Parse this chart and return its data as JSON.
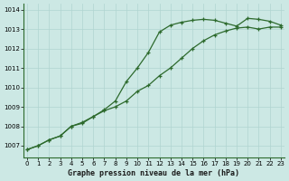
{
  "line1_x": [
    0,
    1,
    2,
    3,
    4,
    5,
    6,
    7,
    8,
    9,
    10,
    11,
    12,
    13,
    14,
    15,
    16,
    17,
    18,
    19,
    20,
    21,
    22,
    23
  ],
  "line1_y": [
    1006.8,
    1007.0,
    1007.3,
    1007.5,
    1008.0,
    1008.2,
    1008.5,
    1008.8,
    1009.0,
    1009.3,
    1009.8,
    1010.1,
    1010.6,
    1011.0,
    1011.5,
    1012.0,
    1012.4,
    1012.7,
    1012.9,
    1013.05,
    1013.1,
    1013.0,
    1013.1,
    1013.1
  ],
  "line2_x": [
    0,
    1,
    2,
    3,
    4,
    5,
    6,
    7,
    8,
    9,
    10,
    11,
    12,
    13,
    14,
    15,
    16,
    17,
    18,
    19,
    20,
    21,
    22,
    23
  ],
  "line2_y": [
    1006.8,
    1007.0,
    1007.3,
    1007.5,
    1008.0,
    1008.15,
    1008.5,
    1008.85,
    1009.3,
    1010.3,
    1011.0,
    1011.8,
    1012.85,
    1013.2,
    1013.35,
    1013.45,
    1013.5,
    1013.45,
    1013.3,
    1013.15,
    1013.55,
    1013.5,
    1013.4,
    1013.2
  ],
  "line_color": "#2d6a2d",
  "bg_color": "#cce8e4",
  "plot_bg": "#cce8e4",
  "outer_bg": "#cce8e4",
  "xlabel": "Graphe pression niveau de la mer (hPa)",
  "yticks": [
    1007,
    1008,
    1009,
    1010,
    1011,
    1012,
    1013,
    1014
  ],
  "xticks": [
    0,
    1,
    2,
    3,
    4,
    5,
    6,
    7,
    8,
    9,
    10,
    11,
    12,
    13,
    14,
    15,
    16,
    17,
    18,
    19,
    20,
    21,
    22,
    23
  ],
  "ylim": [
    1006.4,
    1014.3
  ],
  "xlim": [
    -0.3,
    23.3
  ],
  "grid_color": "#b0d4d0",
  "spine_color": "#2d6a2d",
  "tick_label_size": 5,
  "xlabel_size": 6
}
